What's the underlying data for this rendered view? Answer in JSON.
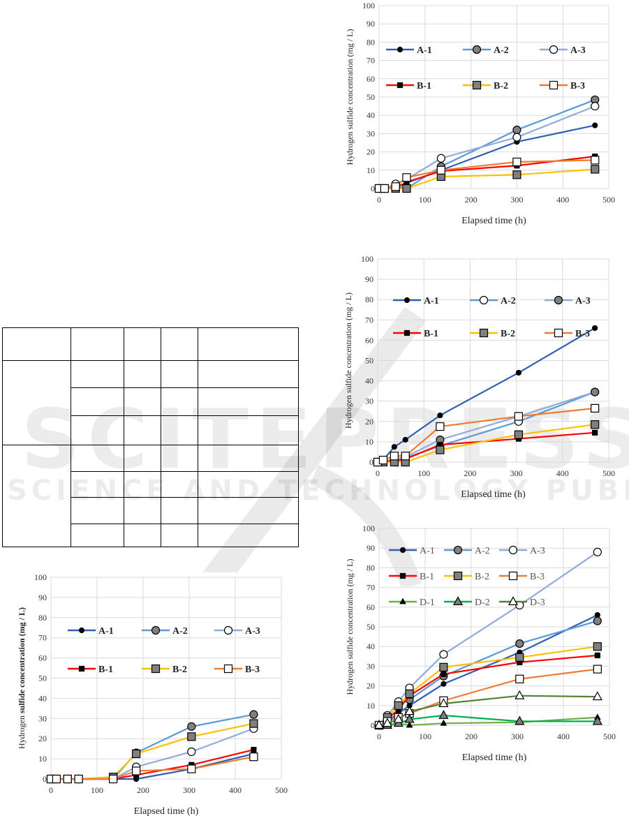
{
  "watermark": {
    "line1": "SCITEPRESS",
    "line2": "SCIENCE AND TECHNOLOGY PUBLICATIONS"
  },
  "table": {
    "rows": 8,
    "columns": 5,
    "cells_text": ""
  },
  "series_styles": {
    "A-1": {
      "color": "#2f5fb3",
      "marker": "circle",
      "fill": "#000000"
    },
    "A-2": {
      "color": "#5b9bd5",
      "marker": "circle",
      "fill": "#808080"
    },
    "A-3": {
      "color": "#8faadc",
      "marker": "circle",
      "fill": "#ffffff"
    },
    "B-1": {
      "color": "#ff0000",
      "marker": "square",
      "fill": "#000000"
    },
    "B-2": {
      "color": "#ffc000",
      "marker": "square",
      "fill": "#808080"
    },
    "B-3": {
      "color": "#ed7d31",
      "marker": "square",
      "fill": "#ffffff"
    },
    "D-1": {
      "color": "#70ad47",
      "marker": "triangle",
      "fill": "#000000"
    },
    "D-2": {
      "color": "#00b050",
      "marker": "triangle",
      "fill": "#808080"
    },
    "D-3": {
      "color": "#548235",
      "marker": "triangle",
      "fill": "#ffffff"
    }
  },
  "chart_data": [
    {
      "type": "line",
      "xlabel": "Elapsed time (h)",
      "ylabel": "Hydrogen sulfide concentration (mg / L)",
      "xlim": [
        0,
        500
      ],
      "ylim": [
        0,
        100
      ],
      "xticks": [
        "0",
        "100",
        "200",
        "300",
        "400",
        "500"
      ],
      "yticks": [
        "0",
        "10",
        "20",
        "30",
        "40",
        "50",
        "60",
        "70",
        "80",
        "90",
        "100"
      ],
      "grid": true,
      "legend": "top",
      "x": [
        0,
        12,
        36,
        60,
        135,
        300,
        470
      ],
      "series": [
        {
          "name": "A-1",
          "values": [
            0,
            0,
            1,
            3,
            10,
            25.5,
            34.5
          ]
        },
        {
          "name": "A-2",
          "values": [
            0,
            0,
            1,
            0,
            12,
            32,
            48.5
          ]
        },
        {
          "name": "A-3",
          "values": [
            0,
            0,
            2.5,
            5,
            16.5,
            28,
            45
          ]
        },
        {
          "name": "B-1",
          "values": [
            0,
            0,
            0,
            3.5,
            9.5,
            12.5,
            17.5
          ]
        },
        {
          "name": "B-2",
          "values": [
            0,
            0,
            0,
            0,
            6.5,
            7.5,
            10.5
          ]
        },
        {
          "name": "B-3",
          "values": [
            0,
            0,
            1,
            6,
            10,
            14.5,
            15.5
          ]
        }
      ]
    },
    {
      "type": "line",
      "xlabel": "Elapsed time (h)",
      "ylabel": "Hydrogen sulfide concentration (mg / L)",
      "xlim": [
        0,
        500
      ],
      "ylim": [
        0,
        100
      ],
      "xticks": [
        "0",
        "100",
        "200",
        "300",
        "400",
        "500"
      ],
      "yticks": [
        "0",
        "10",
        "20",
        "30",
        "40",
        "50",
        "60",
        "70",
        "80",
        "90",
        "100"
      ],
      "grid": true,
      "legend": "top",
      "x": [
        0,
        12,
        36,
        60,
        135,
        305,
        470
      ],
      "marker_fill_override": {
        "A-2": "#ffffff",
        "A-3": "#808080"
      },
      "series": [
        {
          "name": "A-1",
          "values": [
            0,
            1,
            7.5,
            11,
            23,
            44,
            66
          ]
        },
        {
          "name": "A-2",
          "values": [
            0,
            0.5,
            1,
            2,
            8,
            20,
            34.5
          ]
        },
        {
          "name": "A-3",
          "values": [
            0,
            0.5,
            1,
            2.5,
            11,
            22.5,
            34.5
          ]
        },
        {
          "name": "B-1",
          "values": [
            0,
            0.5,
            0.5,
            1.5,
            8.5,
            11.5,
            14.5
          ]
        },
        {
          "name": "B-2",
          "values": [
            0,
            0,
            0,
            0,
            6,
            13.5,
            18.5
          ]
        },
        {
          "name": "B-3",
          "values": [
            0,
            1,
            3,
            3,
            17.5,
            22.5,
            26.5
          ]
        }
      ]
    },
    {
      "type": "line",
      "xlabel": "Elapsed time (h)",
      "ylabel": "Hydrogen sulfide concentration (mg / L)",
      "xlim": [
        0,
        500
      ],
      "ylim": [
        0,
        100
      ],
      "xticks": [
        "0",
        "100",
        "200",
        "300",
        "400",
        "500"
      ],
      "yticks": [
        "0",
        "10",
        "20",
        "30",
        "40",
        "50",
        "60",
        "70",
        "80",
        "90",
        "100"
      ],
      "grid": true,
      "legend": "top",
      "x": [
        0,
        18,
        42,
        66,
        140,
        305,
        474
      ],
      "series": [
        {
          "name": "A-1",
          "values": [
            0,
            2,
            6,
            10,
            21,
            37,
            56
          ]
        },
        {
          "name": "A-2",
          "values": [
            0,
            3,
            11,
            13,
            25,
            41.5,
            53
          ]
        },
        {
          "name": "A-3",
          "values": [
            0,
            5,
            12,
            19,
            36,
            61,
            88
          ]
        },
        {
          "name": "B-1",
          "values": [
            0,
            3,
            8,
            15,
            26,
            32,
            35.5
          ]
        },
        {
          "name": "B-2",
          "values": [
            0,
            4,
            10,
            16,
            29.5,
            34.5,
            40
          ]
        },
        {
          "name": "B-3",
          "values": [
            0,
            2,
            4,
            6,
            12.5,
            23.5,
            28.5
          ]
        },
        {
          "name": "D-1",
          "values": [
            0,
            0,
            1,
            0,
            1,
            1.5,
            4
          ]
        },
        {
          "name": "D-2",
          "values": [
            0,
            0,
            1,
            3,
            5,
            2,
            2
          ]
        },
        {
          "name": "D-3",
          "values": [
            0,
            1,
            3,
            7,
            11,
            15,
            14.5
          ]
        }
      ]
    },
    {
      "type": "line",
      "xlabel": "Elapsed time (h)",
      "ylabel_plain": "Hydrogen ",
      "ylabel_bold": "sulfide concentration (mg / L)",
      "xlim": [
        0,
        500
      ],
      "ylim": [
        0,
        100
      ],
      "xticks": [
        "0",
        "100",
        "200",
        "300",
        "400",
        "500"
      ],
      "yticks": [
        "0",
        "10",
        "20",
        "30",
        "40",
        "50",
        "60",
        "70",
        "80",
        "90",
        "100"
      ],
      "grid": true,
      "legend": "top",
      "x": [
        0,
        12,
        36,
        60,
        135,
        185,
        305,
        440
      ],
      "series": [
        {
          "name": "A-1",
          "values": [
            0,
            0,
            0,
            0,
            0,
            0,
            5,
            12.5
          ]
        },
        {
          "name": "A-2",
          "values": [
            0,
            0,
            0,
            0,
            0,
            13,
            26,
            32
          ]
        },
        {
          "name": "A-3",
          "values": [
            0,
            0,
            0,
            0,
            0,
            6,
            13.5,
            25
          ]
        },
        {
          "name": "B-1",
          "values": [
            0,
            0,
            0,
            0,
            0,
            2,
            7,
            14.5
          ]
        },
        {
          "name": "B-2",
          "values": [
            0,
            0,
            0,
            0,
            1,
            12.5,
            21,
            27.5
          ]
        },
        {
          "name": "B-3",
          "values": [
            0,
            0,
            0,
            0,
            0,
            4,
            5,
            11
          ]
        }
      ]
    }
  ]
}
